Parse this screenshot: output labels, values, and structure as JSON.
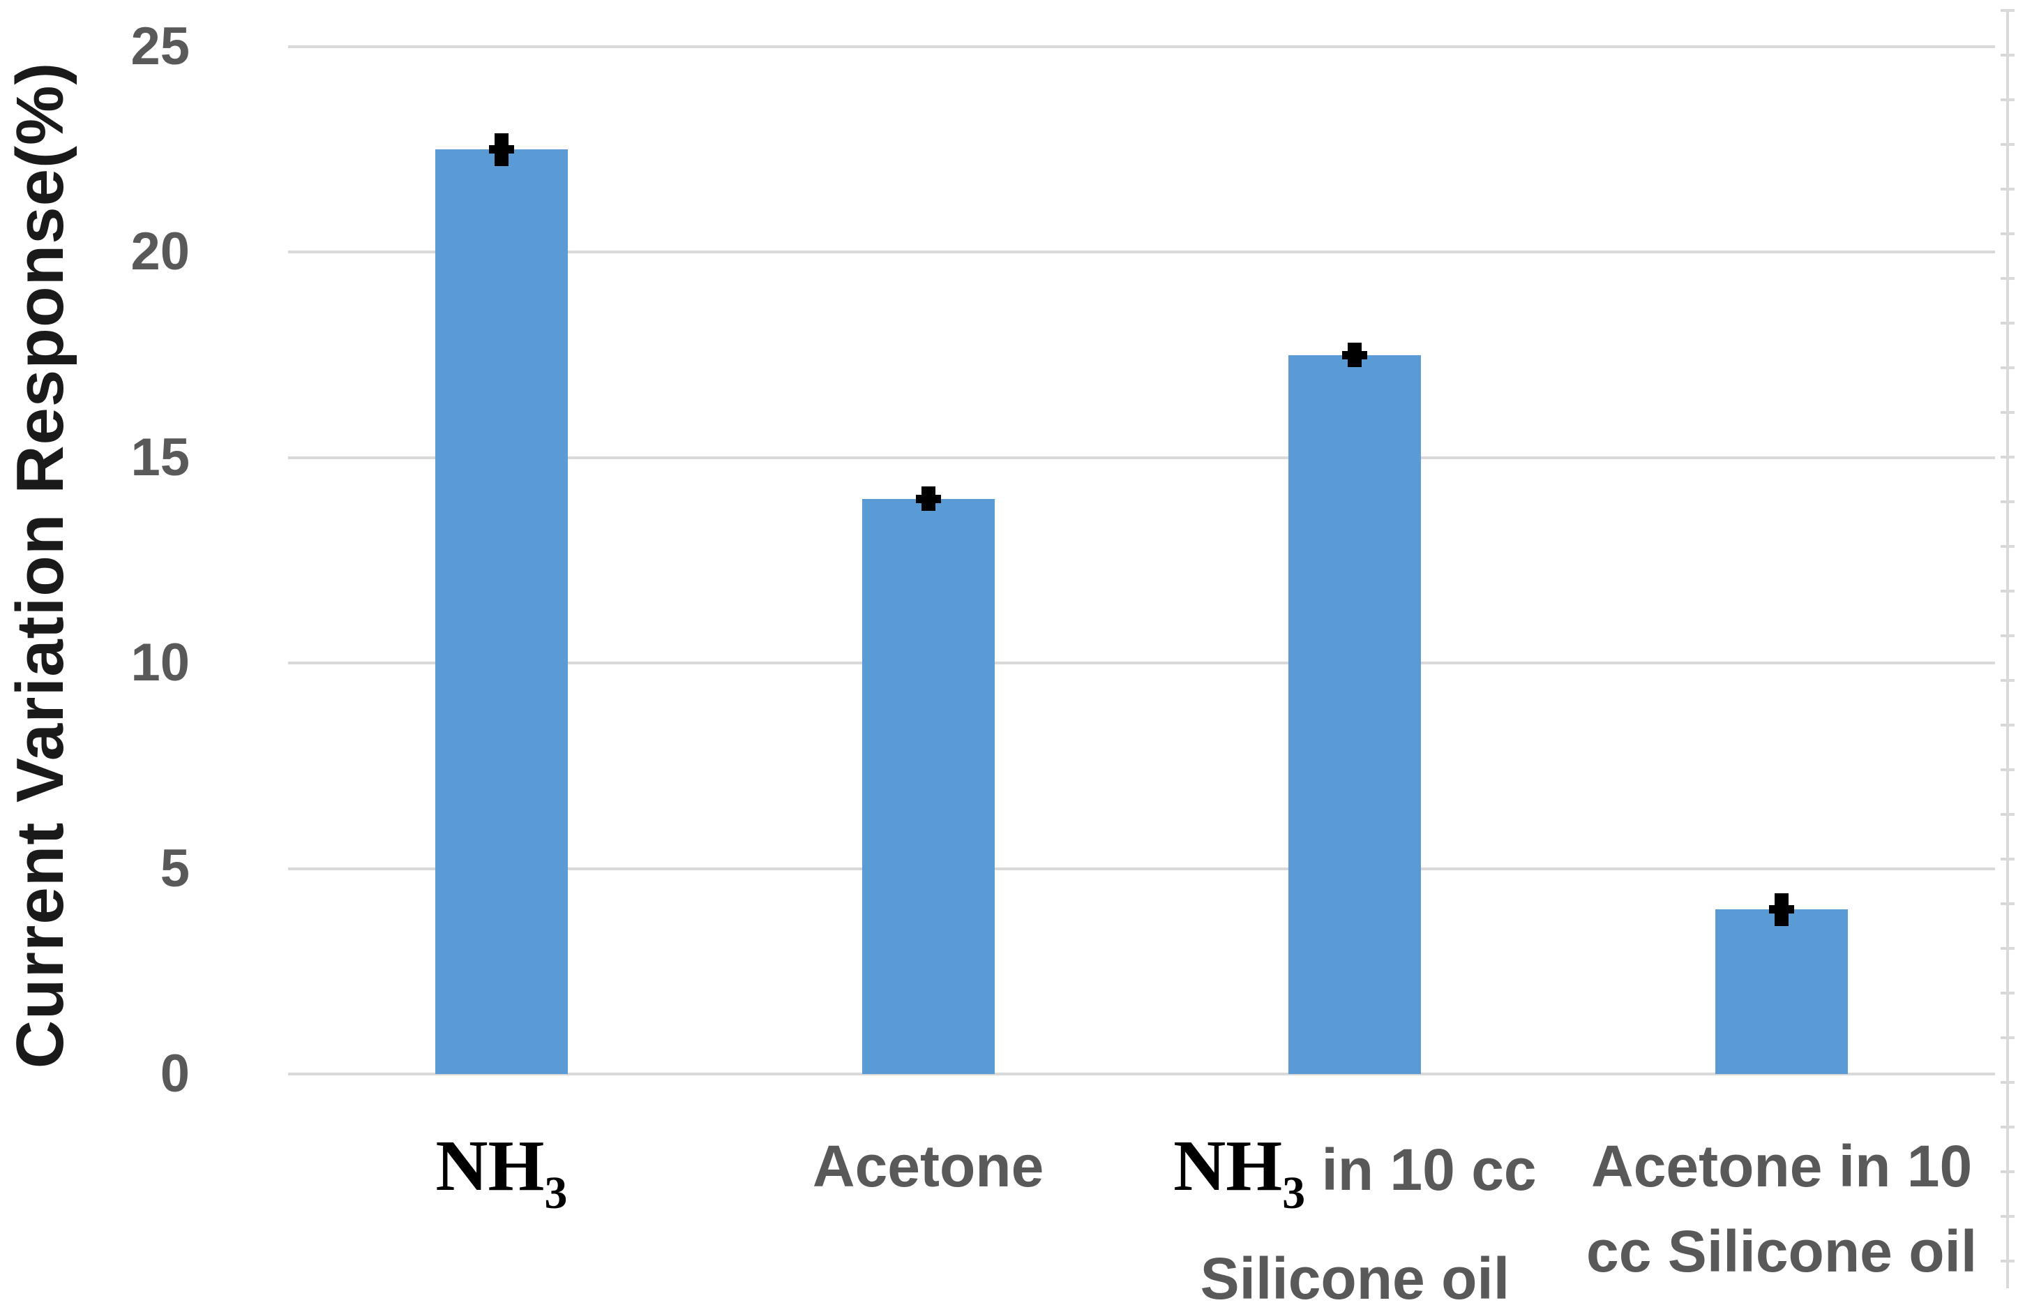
{
  "chart_data": {
    "type": "bar",
    "title": "",
    "xlabel": "",
    "ylabel": "Current Variation Response(%)",
    "categories": [
      "NH₃",
      "Acetone",
      "NH₃ in 10 cc Silicone oil",
      "Acetone in 10 cc Silicone oil"
    ],
    "values": [
      22.5,
      14.0,
      17.5,
      4.0
    ],
    "errors": [
      0.4,
      0.3,
      0.3,
      0.4
    ],
    "ylim": [
      0,
      25
    ],
    "yticks": [
      0,
      5,
      10,
      15,
      20,
      25
    ],
    "grid": true,
    "legend": false,
    "error_marker": "mean-dash",
    "colors": {
      "bar_fill": "#5B9BD5",
      "error_bar": "#000000",
      "gridline": "#D9D9D9",
      "right_axis_line": "#D9D9D9",
      "tick_label": "#595959",
      "category_label": "#595959",
      "chemical_label": "#000000",
      "y_axis_title": "#1A1A1A",
      "background": "#FFFFFF"
    },
    "categories_rich": [
      {
        "lines": [
          [
            {
              "t": "NH",
              "s": "chem"
            },
            {
              "t": "3",
              "s": "chemsub"
            }
          ]
        ]
      },
      {
        "lines": [
          [
            {
              "t": "Acetone",
              "s": "plain"
            }
          ]
        ]
      },
      {
        "lines": [
          [
            {
              "t": "NH",
              "s": "chem"
            },
            {
              "t": "3",
              "s": "chemsub"
            },
            {
              "t": " in 10 cc",
              "s": "plain"
            }
          ],
          [
            {
              "t": "Silicone oil",
              "s": "plain"
            }
          ]
        ]
      },
      {
        "lines": [
          [
            {
              "t": "Acetone in 10",
              "s": "plain"
            }
          ],
          [
            {
              "t": "cc Silicone oil",
              "s": "plain"
            }
          ]
        ]
      }
    ]
  }
}
